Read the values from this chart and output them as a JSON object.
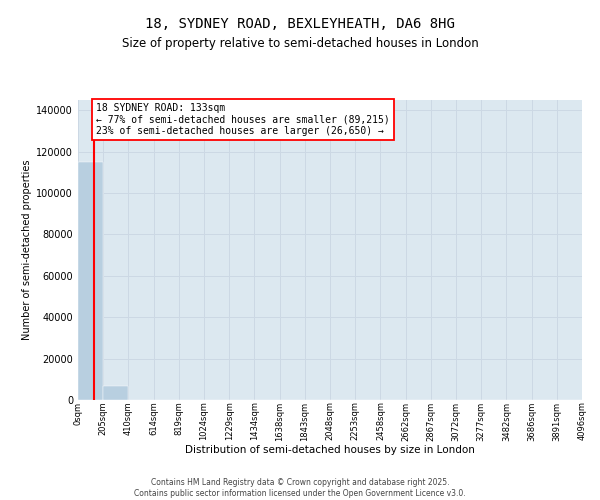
{
  "title_line1": "18, SYDNEY ROAD, BEXLEYHEATH, DA6 8HG",
  "title_line2": "Size of property relative to semi-detached houses in London",
  "xlabel": "Distribution of semi-detached houses by size in London",
  "ylabel": "Number of semi-detached properties",
  "property_size": 133,
  "property_label": "18 SYDNEY ROAD: 133sqm",
  "pct_smaller": 77,
  "num_smaller": 89215,
  "pct_larger": 23,
  "num_larger": 26650,
  "bar_color": "#b8cfe0",
  "annotation_line_color": "red",
  "annotation_box_edge_color": "red",
  "grid_color": "#ccd8e4",
  "background_color": "#dce8f0",
  "bin_edges": [
    0,
    205,
    410,
    614,
    819,
    1024,
    1229,
    1434,
    1638,
    1843,
    2048,
    2253,
    2458,
    2662,
    2867,
    3072,
    3277,
    3482,
    3686,
    3891,
    4096
  ],
  "bin_labels": [
    "0sqm",
    "205sqm",
    "410sqm",
    "614sqm",
    "819sqm",
    "1024sqm",
    "1229sqm",
    "1434sqm",
    "1638sqm",
    "1843sqm",
    "2048sqm",
    "2253sqm",
    "2458sqm",
    "2662sqm",
    "2867sqm",
    "3072sqm",
    "3277sqm",
    "3482sqm",
    "3686sqm",
    "3891sqm",
    "4096sqm"
  ],
  "bar_heights": [
    115000,
    6800,
    0,
    0,
    0,
    0,
    0,
    0,
    0,
    0,
    0,
    0,
    0,
    0,
    0,
    0,
    0,
    0,
    0,
    0
  ],
  "ylim": [
    0,
    145000
  ],
  "yticks": [
    0,
    20000,
    40000,
    60000,
    80000,
    100000,
    120000,
    140000
  ],
  "ytick_labels": [
    "0",
    "20000",
    "40000",
    "60000",
    "80000",
    "100000",
    "120000",
    "140000"
  ],
  "footer_line1": "Contains HM Land Registry data © Crown copyright and database right 2025.",
  "footer_line2": "Contains public sector information licensed under the Open Government Licence v3.0."
}
